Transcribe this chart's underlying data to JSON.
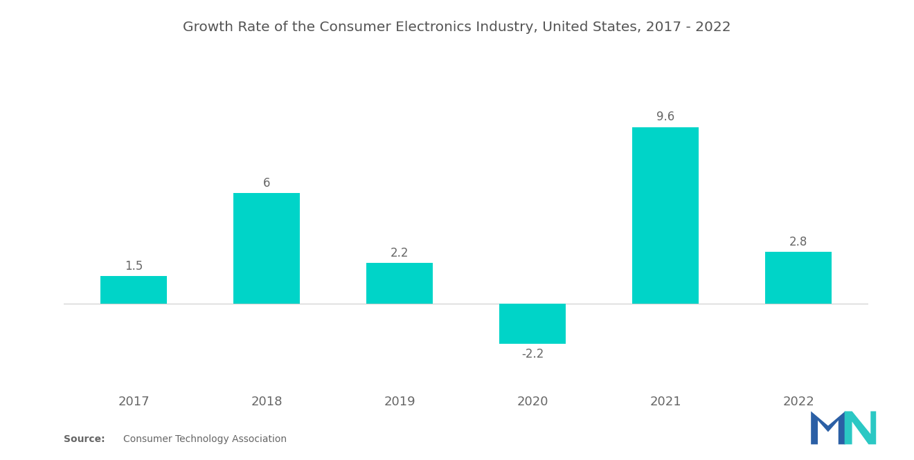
{
  "title": "Growth Rate of the Consumer Electronics Industry, United States, 2017 - 2022",
  "categories": [
    "2017",
    "2018",
    "2019",
    "2020",
    "2021",
    "2022"
  ],
  "values": [
    1.5,
    6.0,
    2.2,
    -2.2,
    9.6,
    2.8
  ],
  "bar_color": "#00D4C8",
  "background_color": "#ffffff",
  "title_fontsize": 14.5,
  "label_fontsize": 12,
  "tick_fontsize": 13,
  "ylim": [
    -4.5,
    12.5
  ],
  "bar_width": 0.5
}
